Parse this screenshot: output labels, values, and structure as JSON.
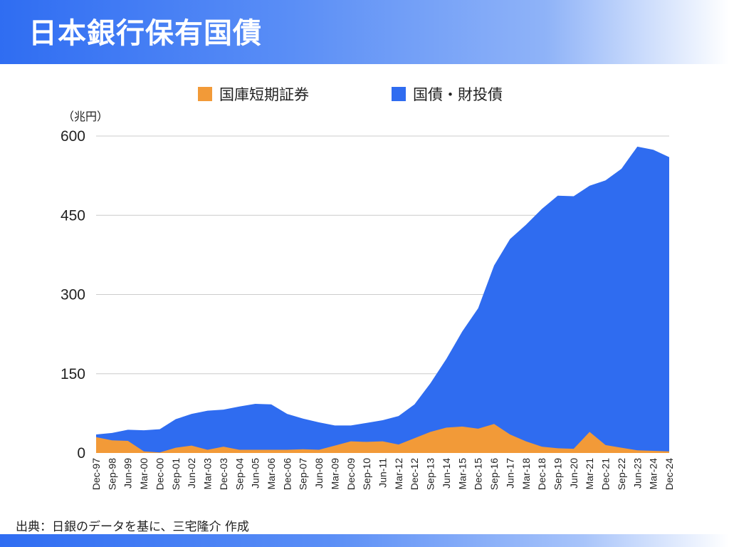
{
  "title": "日本銀行保有国債",
  "source": "出典：日銀のデータを基に、三宅隆介 作成",
  "unit": "（兆円）",
  "colors": {
    "tb": "#f29a38",
    "jgb": "#2f6cf0",
    "grid": "#cccccc"
  },
  "chart_data": {
    "type": "area",
    "stacked": true,
    "title": "",
    "xlabel": "",
    "ylabel": "（兆円）",
    "ylim": [
      0,
      600
    ],
    "yticks": [
      0,
      150,
      300,
      450,
      600
    ],
    "grid": true,
    "legend_position": "top",
    "categories": [
      "Dec-97",
      "Sep-98",
      "Jun-99",
      "Mar-00",
      "Dec-00",
      "Sep-01",
      "Jun-02",
      "Mar-03",
      "Dec-03",
      "Sep-04",
      "Jun-05",
      "Mar-06",
      "Dec-06",
      "Sep-07",
      "Jun-08",
      "Mar-09",
      "Dec-09",
      "Sep-10",
      "Jun-11",
      "Mar-12",
      "Dec-12",
      "Sep-13",
      "Jun-14",
      "Mar-15",
      "Dec-15",
      "Sep-16",
      "Jun-17",
      "Mar-18",
      "Dec-18",
      "Sep-19",
      "Jun-20",
      "Mar-21",
      "Dec-21",
      "Sep-22",
      "Jun-23",
      "Mar-24",
      "Dec-24"
    ],
    "series": [
      {
        "name": "国庫短期証券",
        "values": [
          30,
          24,
          23,
          3,
          1,
          10,
          14,
          6,
          12,
          6,
          6,
          6,
          6,
          7,
          6,
          14,
          22,
          21,
          22,
          16,
          28,
          40,
          48,
          50,
          46,
          55,
          35,
          22,
          12,
          9,
          8,
          40,
          15,
          10,
          5,
          4,
          3
        ]
      },
      {
        "name": "国債・財投債",
        "values": [
          5,
          14,
          21,
          40,
          44,
          54,
          60,
          74,
          70,
          82,
          87,
          86,
          68,
          58,
          52,
          38,
          30,
          36,
          40,
          54,
          64,
          92,
          130,
          180,
          228,
          300,
          370,
          410,
          450,
          478,
          478,
          466,
          501,
          528,
          575,
          570,
          557
        ]
      }
    ]
  }
}
